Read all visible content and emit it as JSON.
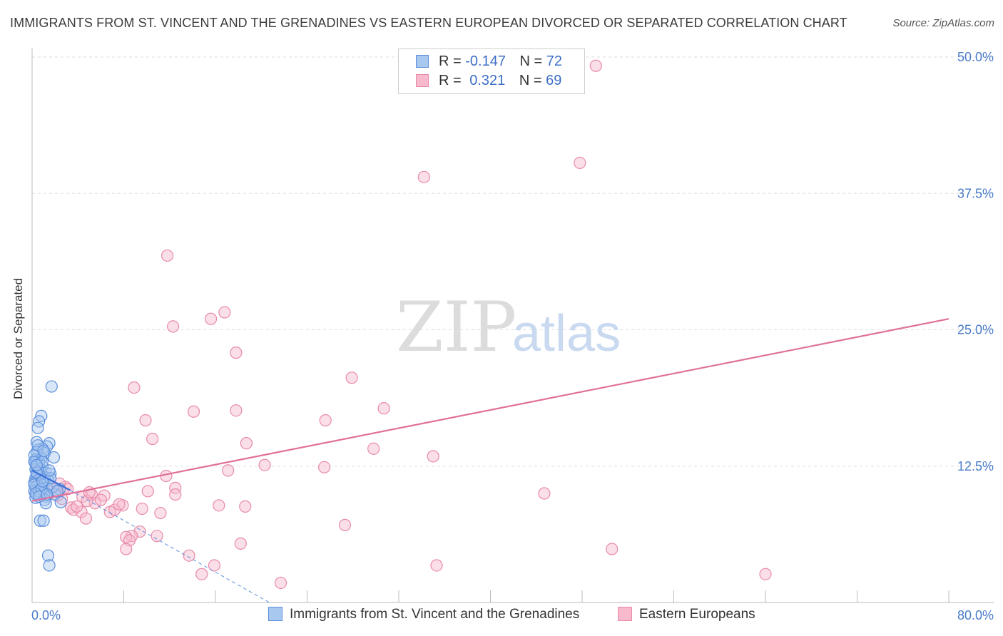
{
  "title": "IMMIGRANTS FROM ST. VINCENT AND THE GRENADINES VS EASTERN EUROPEAN DIVORCED OR SEPARATED CORRELATION CHART",
  "source": "Source: ZipAtlas.com",
  "watermark": {
    "zip": "ZIP",
    "atlas": "atlas"
  },
  "legend": {
    "rows": [
      {
        "r_label": "R =",
        "r_value": "-0.147",
        "n_label": "N =",
        "n_value": "72"
      },
      {
        "r_label": "R =",
        "r_value": " 0.321",
        "n_label": "N =",
        "n_value": "69"
      }
    ],
    "series_names": [
      "Immigrants from St. Vincent and the Grenadines",
      "Eastern Europeans"
    ]
  },
  "colors": {
    "blue_fill": "#a9c8f0",
    "blue_stroke": "#5b8fdc",
    "blue_line": "#3a6fd8",
    "pink_fill": "#f7b9cb",
    "pink_stroke": "#e88aa8",
    "pink_line": "#e0709a",
    "tick_label": "#4a7cc9"
  },
  "chart_data": {
    "type": "scatter",
    "title": "IMMIGRANTS FROM ST. VINCENT AND THE GRENADINES VS EASTERN EUROPEAN DIVORCED OR SEPARATED CORRELATION CHART",
    "xlabel": "",
    "ylabel": "Divorced or Separated",
    "xlim": [
      0,
      80
    ],
    "ylim": [
      0,
      50
    ],
    "x_tick_labels": [
      "0.0%",
      "80.0%"
    ],
    "y_ticks": [
      12.5,
      25.0,
      37.5,
      50.0
    ],
    "y_tick_labels": [
      "12.5%",
      "25.0%",
      "37.5%",
      "50.0%"
    ],
    "grid": true,
    "series": [
      {
        "name": "Immigrants from St. Vincent and the Grenadines",
        "color": "blue",
        "trend": {
          "x": [
            0,
            3.3
          ],
          "y": [
            12.1,
            10.3
          ],
          "extended_x": [
            3.3,
            20.7
          ],
          "extended_y": [
            10.3,
            0.0
          ]
        },
        "points": [
          [
            1.7,
            19.8
          ],
          [
            0.8,
            17.1
          ],
          [
            0.6,
            16.6
          ],
          [
            0.5,
            16.0
          ],
          [
            0.4,
            14.7
          ],
          [
            1.5,
            14.6
          ],
          [
            1.3,
            14.3
          ],
          [
            0.9,
            14.1
          ],
          [
            0.5,
            14.0
          ],
          [
            0.4,
            13.8
          ],
          [
            1.1,
            13.7
          ],
          [
            1.9,
            13.3
          ],
          [
            0.8,
            13.2
          ],
          [
            0.3,
            13.1
          ],
          [
            0.6,
            13.0
          ],
          [
            0.3,
            12.8
          ],
          [
            0.6,
            12.7
          ],
          [
            0.9,
            12.5
          ],
          [
            0.4,
            12.4
          ],
          [
            0.3,
            12.2
          ],
          [
            0.5,
            12.0
          ],
          [
            1.2,
            11.9
          ],
          [
            1.6,
            11.8
          ],
          [
            0.4,
            11.7
          ],
          [
            0.8,
            11.6
          ],
          [
            1.1,
            11.5
          ],
          [
            0.3,
            11.4
          ],
          [
            0.6,
            11.3
          ],
          [
            1.4,
            11.2
          ],
          [
            0.4,
            11.1
          ],
          [
            0.2,
            11.0
          ],
          [
            0.7,
            10.9
          ],
          [
            1.0,
            10.8
          ],
          [
            0.5,
            10.7
          ],
          [
            0.3,
            10.6
          ],
          [
            1.3,
            10.5
          ],
          [
            2.4,
            10.4
          ],
          [
            0.6,
            10.3
          ],
          [
            0.2,
            10.2
          ],
          [
            0.9,
            10.1
          ],
          [
            1.1,
            10.0
          ],
          [
            0.4,
            9.9
          ],
          [
            2.0,
            9.9
          ],
          [
            0.8,
            9.8
          ],
          [
            1.2,
            9.7
          ],
          [
            0.3,
            9.6
          ],
          [
            1.1,
            9.4
          ],
          [
            2.5,
            9.2
          ],
          [
            1.2,
            9.1
          ],
          [
            0.7,
            7.5
          ],
          [
            1.0,
            7.5
          ],
          [
            1.4,
            4.3
          ],
          [
            1.5,
            3.4
          ],
          [
            0.2,
            13.5
          ],
          [
            0.2,
            12.9
          ],
          [
            0.7,
            12.2
          ],
          [
            0.2,
            10.8
          ],
          [
            0.6,
            10.2
          ],
          [
            1.8,
            10.6
          ],
          [
            0.9,
            12.9
          ],
          [
            1.6,
            11.4
          ],
          [
            0.4,
            11.9
          ],
          [
            0.8,
            10.4
          ],
          [
            1.5,
            12.1
          ],
          [
            0.5,
            14.4
          ],
          [
            1.0,
            13.9
          ],
          [
            0.3,
            10.0
          ],
          [
            0.6,
            9.7
          ],
          [
            2.2,
            10.2
          ],
          [
            1.3,
            9.9
          ],
          [
            0.9,
            11.1
          ],
          [
            0.4,
            12.6
          ]
        ]
      },
      {
        "name": "Eastern Europeans",
        "color": "pink",
        "trend": {
          "x": [
            0,
            80
          ],
          "y": [
            9.3,
            26.0
          ]
        },
        "points": [
          [
            49.2,
            49.2
          ],
          [
            47.8,
            40.3
          ],
          [
            34.2,
            39.0
          ],
          [
            11.8,
            31.8
          ],
          [
            16.8,
            26.6
          ],
          [
            15.6,
            26.0
          ],
          [
            12.3,
            25.3
          ],
          [
            17.8,
            22.9
          ],
          [
            27.9,
            20.6
          ],
          [
            8.9,
            19.7
          ],
          [
            30.7,
            17.8
          ],
          [
            14.1,
            17.5
          ],
          [
            17.8,
            17.6
          ],
          [
            9.9,
            16.7
          ],
          [
            25.6,
            16.7
          ],
          [
            10.5,
            15.0
          ],
          [
            18.7,
            14.6
          ],
          [
            29.8,
            14.1
          ],
          [
            35.0,
            13.4
          ],
          [
            20.3,
            12.6
          ],
          [
            25.5,
            12.4
          ],
          [
            17.1,
            12.1
          ],
          [
            11.7,
            11.6
          ],
          [
            12.5,
            10.5
          ],
          [
            2.9,
            10.6
          ],
          [
            10.1,
            10.2
          ],
          [
            3.1,
            10.4
          ],
          [
            1.8,
            10.4
          ],
          [
            12.5,
            9.9
          ],
          [
            44.7,
            10.0
          ],
          [
            5.2,
            9.9
          ],
          [
            6.3,
            9.8
          ],
          [
            2.6,
            9.5
          ],
          [
            4.4,
            9.7
          ],
          [
            1.4,
            10.2
          ],
          [
            2.2,
            9.8
          ],
          [
            16.3,
            8.9
          ],
          [
            18.6,
            8.8
          ],
          [
            7.9,
            8.9
          ],
          [
            3.4,
            8.7
          ],
          [
            9.6,
            8.6
          ],
          [
            5.5,
            9.1
          ],
          [
            3.6,
            8.5
          ],
          [
            6.8,
            8.3
          ],
          [
            4.3,
            8.3
          ],
          [
            11.2,
            8.2
          ],
          [
            7.2,
            8.5
          ],
          [
            4.7,
            7.7
          ],
          [
            4.8,
            9.3
          ],
          [
            27.3,
            7.1
          ],
          [
            9.4,
            6.5
          ],
          [
            8.7,
            6.1
          ],
          [
            8.2,
            6.0
          ],
          [
            10.9,
            6.1
          ],
          [
            8.5,
            5.7
          ],
          [
            18.2,
            5.4
          ],
          [
            8.2,
            4.9
          ],
          [
            50.6,
            4.9
          ],
          [
            13.7,
            4.3
          ],
          [
            15.9,
            3.4
          ],
          [
            14.8,
            2.6
          ],
          [
            35.3,
            3.4
          ],
          [
            64.0,
            2.6
          ],
          [
            21.7,
            1.8
          ],
          [
            6.0,
            9.4
          ],
          [
            3.9,
            8.8
          ],
          [
            2.4,
            10.9
          ],
          [
            7.6,
            9.0
          ],
          [
            5.0,
            10.1
          ]
        ]
      }
    ]
  }
}
